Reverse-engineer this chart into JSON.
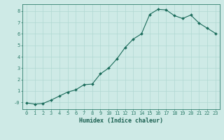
{
  "x": [
    0,
    1,
    2,
    3,
    4,
    5,
    6,
    7,
    8,
    9,
    10,
    11,
    12,
    13,
    14,
    15,
    16,
    17,
    18,
    19,
    20,
    21,
    22,
    23
  ],
  "y": [
    -0.05,
    -0.15,
    -0.1,
    0.2,
    0.55,
    0.9,
    1.1,
    1.55,
    1.6,
    2.5,
    3.0,
    3.8,
    4.8,
    5.55,
    6.0,
    7.7,
    8.15,
    8.1,
    7.6,
    7.35,
    7.65,
    6.95,
    6.5,
    6.05
  ],
  "line_color": "#1a6b5a",
  "marker_color": "#1a6b5a",
  "bg_color": "#ceeae6",
  "grid_color": "#b0d8d2",
  "xlabel": "Humidex (Indice chaleur)",
  "xlim": [
    -0.5,
    23.5
  ],
  "ylim": [
    -0.6,
    8.6
  ],
  "yticks": [
    0,
    1,
    2,
    3,
    4,
    5,
    6,
    7,
    8
  ],
  "ytick_labels": [
    "-0",
    "1",
    "2",
    "3",
    "4",
    "5",
    "6",
    "7",
    "8"
  ],
  "xticks": [
    0,
    1,
    2,
    3,
    4,
    5,
    6,
    7,
    8,
    9,
    10,
    11,
    12,
    13,
    14,
    15,
    16,
    17,
    18,
    19,
    20,
    21,
    22,
    23
  ],
  "font_color": "#1a5f50",
  "axis_color": "#2e7d6b",
  "tick_fontsize": 5.0,
  "xlabel_fontsize": 6.0,
  "linewidth": 0.8,
  "markersize": 2.0
}
